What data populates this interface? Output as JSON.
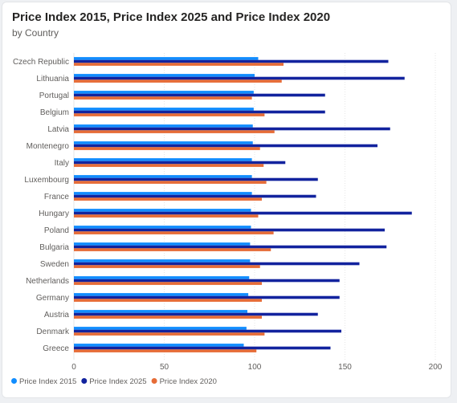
{
  "header": {
    "title": "Price Index 2015, Price Index 2025 and Price Index 2020",
    "subtitle": "by Country"
  },
  "chart_data": {
    "type": "bar",
    "orientation": "horizontal",
    "title": "Price Index 2015, Price Index 2025 and Price Index 2020",
    "subtitle": "by Country",
    "xlabel": "",
    "ylabel": "",
    "xlim": [
      0,
      200
    ],
    "xticks": [
      0,
      50,
      100,
      150,
      200
    ],
    "grid": true,
    "legend_position": "bottom-left",
    "categories": [
      "Czech Republic",
      "Lithuania",
      "Portugal",
      "Belgium",
      "Latvia",
      "Montenegro",
      "Italy",
      "Luxembourg",
      "France",
      "Hungary",
      "Poland",
      "Bulgaria",
      "Sweden",
      "Netherlands",
      "Germany",
      "Austria",
      "Denmark",
      "Greece"
    ],
    "series": [
      {
        "name": "Price Index  2015",
        "color": "#118dff",
        "values": [
          102,
          100,
          99.5,
          99.5,
          99,
          99,
          98.5,
          98.5,
          98.5,
          98,
          98,
          97.5,
          97.5,
          97,
          96.5,
          96,
          95.5,
          94
        ]
      },
      {
        "name": "Price Index 2025",
        "color": "#12239e",
        "values": [
          174,
          183,
          139,
          139,
          175,
          168,
          117,
          135,
          134,
          187,
          172,
          173,
          158,
          147,
          147,
          135,
          148,
          142
        ]
      },
      {
        "name": "Price Index 2020",
        "color": "#e66c37",
        "values": [
          116,
          115,
          98.5,
          105.5,
          111,
          103,
          105,
          106.5,
          104,
          102,
          110.5,
          109,
          103,
          104,
          104,
          104,
          105.5,
          101
        ]
      }
    ]
  }
}
